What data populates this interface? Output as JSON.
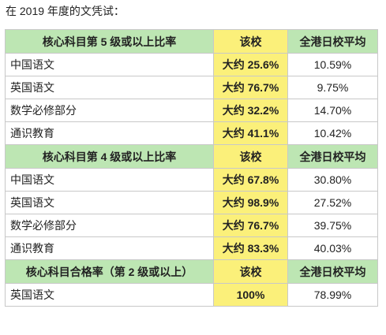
{
  "intro": "在 2019 年度的文凭试：",
  "sections": [
    {
      "header": {
        "title": "核心科目第 5 级或以上比率",
        "school": "该校",
        "hk_avg": "全港日校平均"
      },
      "rows": [
        {
          "subject": "中国语文",
          "school": "大约 25.6%",
          "hk_avg": "10.59%"
        },
        {
          "subject": "英国语文",
          "school": "大约 76.7%",
          "hk_avg": "9.75%"
        },
        {
          "subject": "数学必修部分",
          "school": "大约 32.2%",
          "hk_avg": "14.70%"
        },
        {
          "subject": "通识教育",
          "school": "大约 41.1%",
          "hk_avg": "10.42%"
        }
      ]
    },
    {
      "header": {
        "title": "核心科目第 4 级或以上比率",
        "school": "该校",
        "hk_avg": "全港日校平均"
      },
      "rows": [
        {
          "subject": "中国语文",
          "school": "大约 67.8%",
          "hk_avg": "30.80%"
        },
        {
          "subject": "英国语文",
          "school": "大约 98.9%",
          "hk_avg": "27.52%"
        },
        {
          "subject": "数学必修部分",
          "school": "大约 76.7%",
          "hk_avg": "39.75%"
        },
        {
          "subject": "通识教育",
          "school": "大约 83.3%",
          "hk_avg": "40.03%"
        }
      ]
    },
    {
      "header": {
        "title": "核心科目合格率（第 2 级或以上）",
        "school": "该校",
        "hk_avg": "全港日校平均"
      },
      "rows": [
        {
          "subject": "英国语文",
          "school": "100%",
          "hk_avg": "78.99%"
        }
      ]
    }
  ],
  "colors": {
    "header_green": "#bde6b3",
    "school_yellow": "#fbf07a",
    "border": "#c8c8c8"
  }
}
